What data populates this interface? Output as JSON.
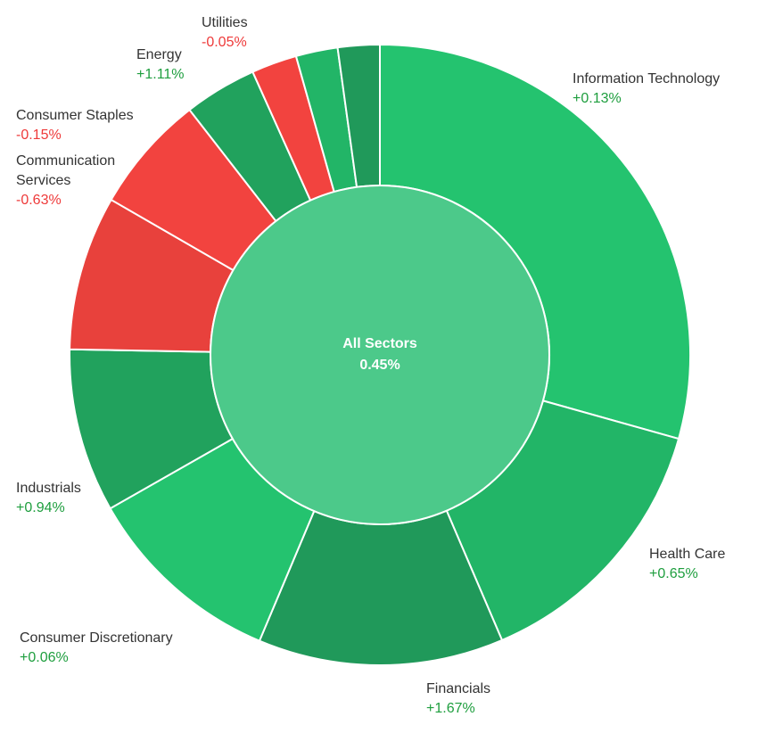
{
  "chart_data": {
    "type": "pie",
    "center": {
      "title": "All Sectors",
      "value": "0.45%"
    },
    "colors": {
      "positive_text": "#1e9e3e",
      "negative_text": "#ee3a3a"
    },
    "series": [
      {
        "name": "Information Technology",
        "change": "+0.13%",
        "weight": 31.0,
        "color": "#24c36f"
      },
      {
        "name": "Health Care",
        "change": "+0.65%",
        "weight": 15.0,
        "color": "#22b567"
      },
      {
        "name": "Financials",
        "change": "+1.67%",
        "weight": 13.5,
        "color": "#20995a"
      },
      {
        "name": "Consumer Discretionary",
        "change": "+0.06%",
        "weight": 11.0,
        "color": "#24c36f"
      },
      {
        "name": "Industrials",
        "change": "+0.94%",
        "weight": 9.0,
        "color": "#21a25d"
      },
      {
        "name": "Communication Services",
        "change": "-0.63%",
        "weight": 8.5,
        "color": "#e8413c"
      },
      {
        "name": "Consumer Staples",
        "change": "-0.15%",
        "weight": 6.5,
        "color": "#f2433f"
      },
      {
        "name": "Energy",
        "change": "+1.11%",
        "weight": 4.0,
        "color": "#21a25d"
      },
      {
        "name": "Utilities",
        "change": "-0.05%",
        "weight": 2.5,
        "color": "#f2433f"
      },
      {
        "name": "",
        "change": "",
        "weight": 2.3,
        "color": "#22b567"
      },
      {
        "name": "",
        "change": "",
        "weight": 2.3,
        "color": "#20995a"
      }
    ]
  }
}
